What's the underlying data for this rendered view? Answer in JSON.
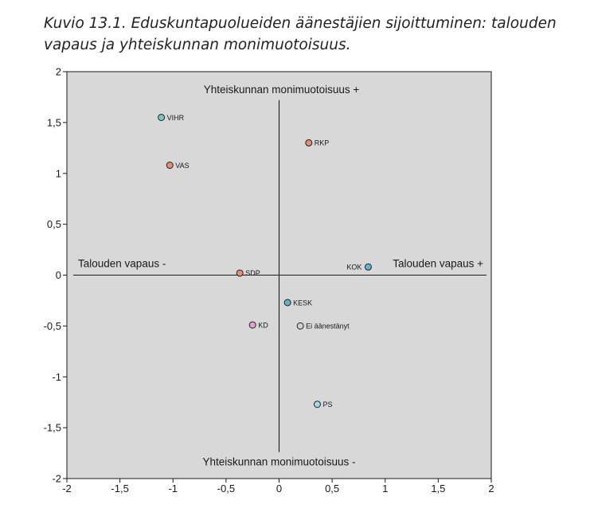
{
  "caption": "Kuvio 13.1. Eduskuntapuolueiden äänestäjien sijoittuminen: talouden vapaus ja yhteiskunnan monimuotoisuus.",
  "colors": {
    "plot_background": "#d8d8d8",
    "green": "#7ec4c4",
    "red": "#e88c78",
    "blue": "#6aaed0",
    "light_blue": "#a8d4ec",
    "pink": "#e7a0cc",
    "grey": "#cfcfcf",
    "axis": "#1a1a1a"
  },
  "chart_data": {
    "type": "scatter",
    "title": "",
    "xlabel": "",
    "ylabel": "",
    "xlim": [
      -2,
      2
    ],
    "ylim": [
      -2,
      2
    ],
    "x_ticks": [
      -2,
      -1.5,
      -1,
      -0.5,
      0,
      0.5,
      1,
      1.5,
      2
    ],
    "x_tick_labels": [
      "-2",
      "-1,5",
      "-1",
      "-0,5",
      "0",
      "0,5",
      "1",
      "1,5",
      "2"
    ],
    "y_ticks": [
      -2,
      -1.5,
      -1,
      -0.5,
      0,
      0.5,
      1,
      1.5,
      2
    ],
    "y_tick_labels": [
      "-2",
      "-1,5",
      "-1",
      "-0,5",
      "0",
      "0,5",
      "1",
      "1,5",
      "2"
    ],
    "quadrant_labels": {
      "top": "Yhteiskunnan monimuotoisuus +",
      "bottom": "Yhteiskunnan monimuotoisuus -",
      "left": "Talouden vapaus -",
      "right": "Talouden vapaus +"
    },
    "points": [
      {
        "label": "VIHR",
        "x": -1.11,
        "y": 1.55,
        "color": "#7ec4c4",
        "label_side": "right"
      },
      {
        "label": "VAS",
        "x": -1.03,
        "y": 1.08,
        "color": "#e88c78",
        "label_side": "right"
      },
      {
        "label": "RKP",
        "x": 0.28,
        "y": 1.3,
        "color": "#e88c78",
        "label_side": "right"
      },
      {
        "label": "KOK",
        "x": 0.84,
        "y": 0.08,
        "color": "#6aaed0",
        "label_side": "left"
      },
      {
        "label": "SDP",
        "x": -0.37,
        "y": 0.02,
        "color": "#e88c78",
        "label_side": "right"
      },
      {
        "label": "KESK",
        "x": 0.08,
        "y": -0.27,
        "color": "#6aaed0",
        "label_side": "right"
      },
      {
        "label": "KD",
        "x": -0.25,
        "y": -0.49,
        "color": "#e7a0cc",
        "label_side": "right"
      },
      {
        "label": "Ei äänestänyt",
        "x": 0.2,
        "y": -0.5,
        "color": "#cfcfcf",
        "label_side": "right"
      },
      {
        "label": "PS",
        "x": 0.36,
        "y": -1.27,
        "color": "#a8d4ec",
        "label_side": "right"
      }
    ],
    "grid": false,
    "legend": "none"
  }
}
